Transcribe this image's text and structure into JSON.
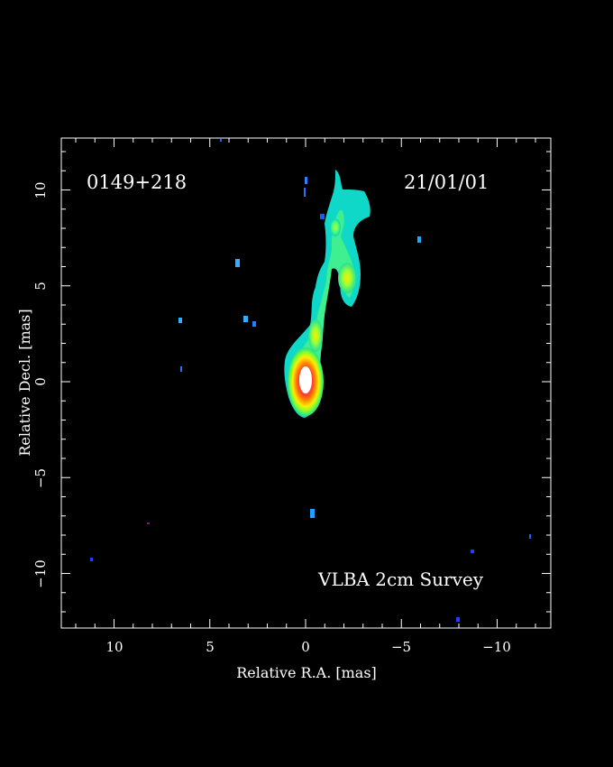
{
  "image": {
    "source_label": "0149+218",
    "date_label": "21/01/01",
    "survey_label": "VLBA 2cm Survey",
    "x_axis_label": "Relative R.A. [mas]",
    "y_axis_label": "Relative Decl. [mas]",
    "x_ticks": [
      "10",
      "5",
      "0",
      "−5",
      "−10"
    ],
    "y_ticks": [
      "10",
      "5",
      "0",
      "−5",
      "−10"
    ],
    "colors": {
      "background": "#000000",
      "axes": "#ffffff",
      "colormap": [
        "#0000ff",
        "#00c8ff",
        "#00ffb0",
        "#80ff40",
        "#ffff00",
        "#ff8000",
        "#ff0000",
        "#ffffff"
      ]
    }
  }
}
